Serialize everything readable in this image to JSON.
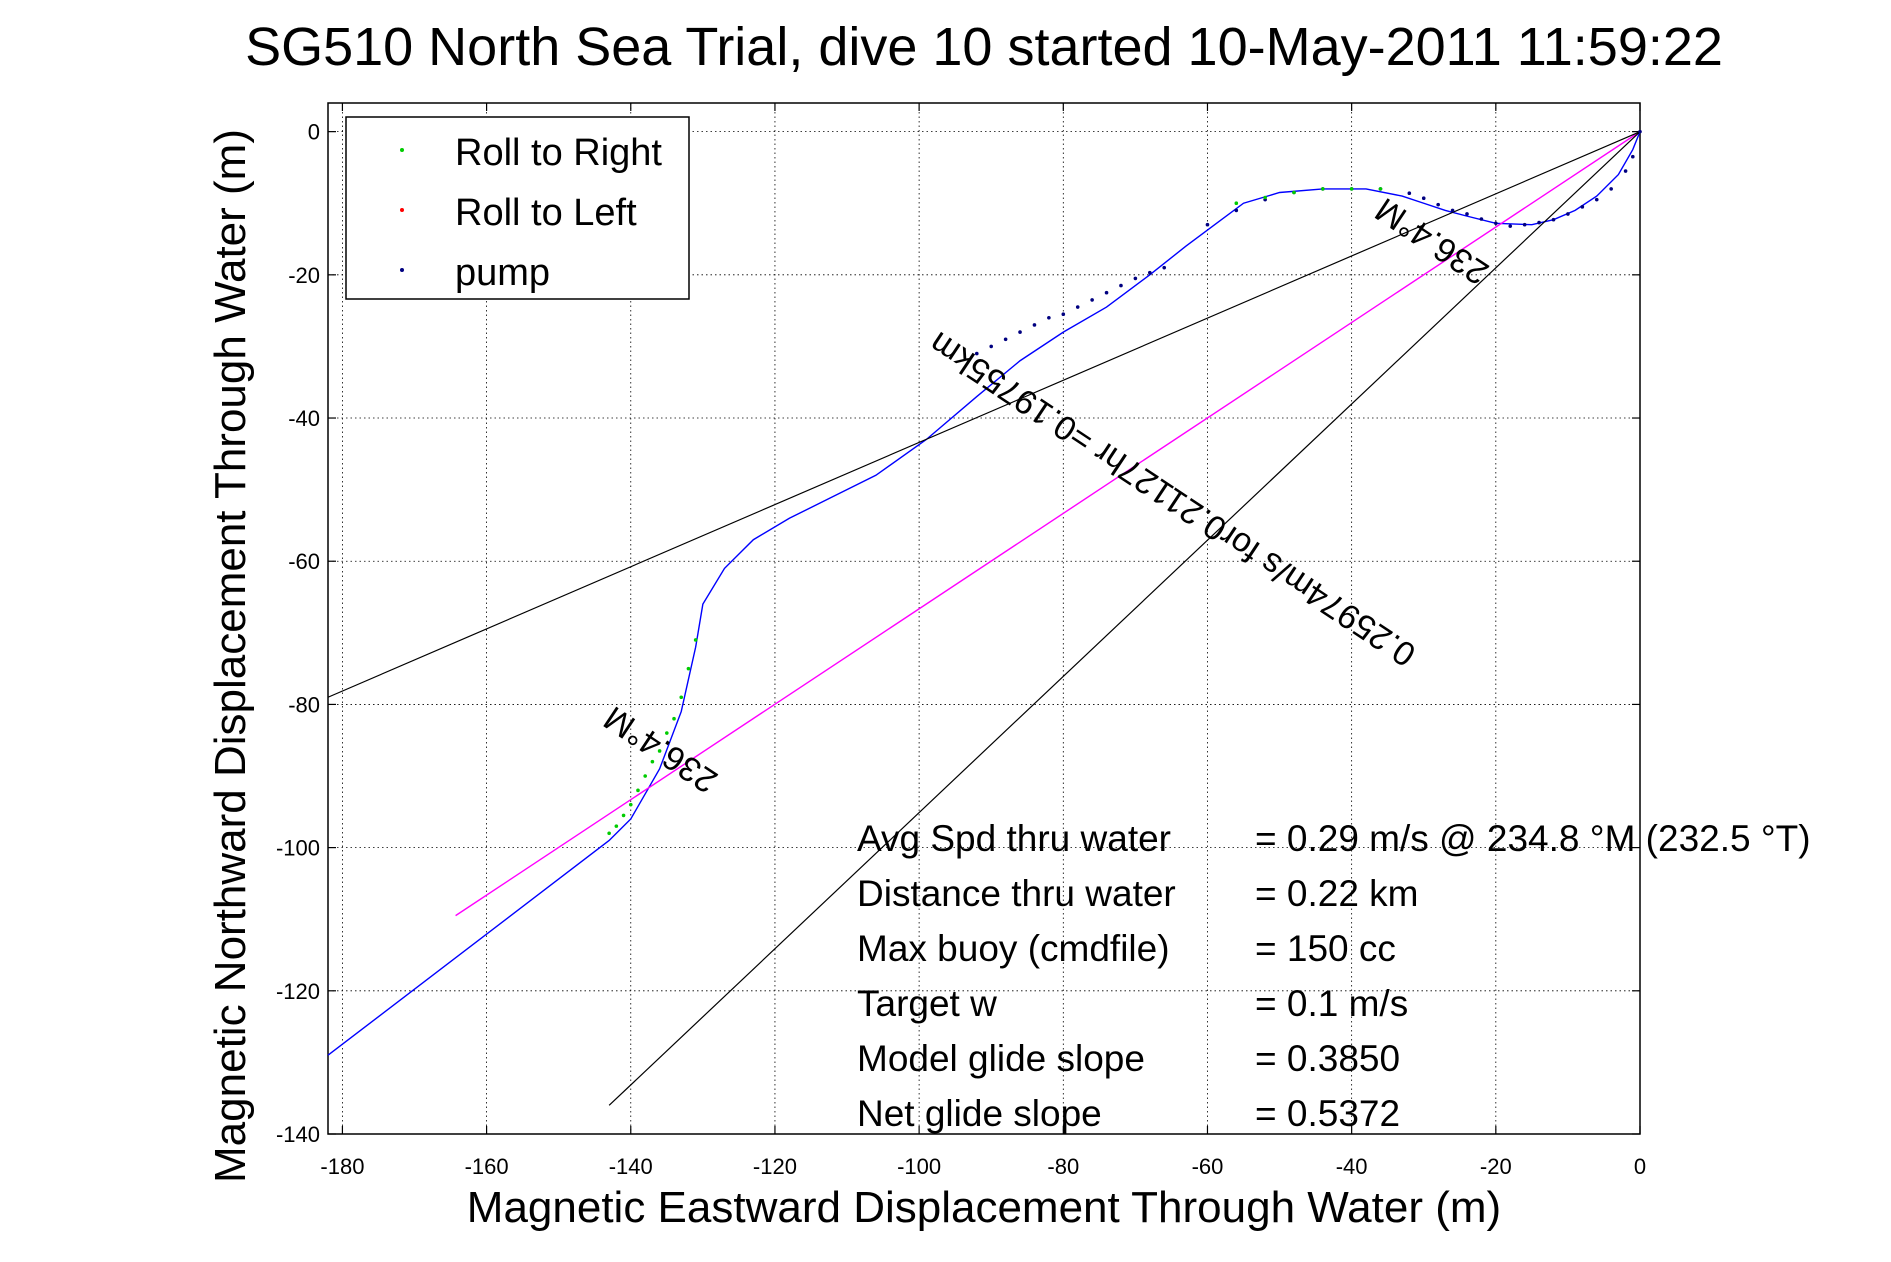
{
  "chart_data": {
    "type": "line",
    "title": "SG510 North Sea Trial, dive 10 started 10-May-2011 11:59:22",
    "xlabel": "Magnetic Eastward Displacement Through Water (m)",
    "ylabel": "Magnetic Northward Displacement Through Water (m)",
    "xlim": [
      -182,
      0
    ],
    "ylim": [
      -140,
      4
    ],
    "xticks": [
      -180,
      -160,
      -140,
      -120,
      -100,
      -80,
      -60,
      -40,
      -20,
      0
    ],
    "yticks": [
      0,
      -20,
      -40,
      -60,
      -80,
      -100,
      -120,
      -140
    ],
    "grid": true,
    "legend": {
      "placement": "top-left",
      "entries": [
        {
          "label": "Roll to Right",
          "color": "#00cc00"
        },
        {
          "label": "Roll to Left",
          "color": "#ff0000"
        },
        {
          "label": "pump",
          "color": "#000080"
        }
      ]
    },
    "series": [
      {
        "role": "track",
        "color": "#0000ff",
        "x": [
          -182,
          -143,
          -140,
          -136,
          -133,
          -131,
          -130,
          -127,
          -123,
          -118,
          -112,
          -106,
          -99,
          -92,
          -86,
          -80,
          -74,
          -68,
          -63,
          -59,
          -55,
          -50,
          -44,
          -38,
          -33,
          -30,
          -27,
          -24,
          -20,
          -15,
          -12,
          -9,
          -6,
          -3,
          -1,
          0
        ],
        "y": [
          -129,
          -99,
          -96,
          -89,
          -81,
          -72,
          -66,
          -61,
          -57,
          -54,
          -51,
          -48,
          -43,
          -37,
          -32,
          -28,
          -24.5,
          -20,
          -16,
          -13,
          -10,
          -8.5,
          -8,
          -8,
          -9,
          -10,
          -11,
          -11.8,
          -12.8,
          -13,
          -12.3,
          -11,
          -9,
          -6,
          -2.5,
          0
        ]
      },
      {
        "role": "pump",
        "color": "#000080",
        "x": [
          -92,
          -90,
          -88,
          -86,
          -84,
          -82,
          -80,
          -78,
          -76,
          -74,
          -72,
          -70,
          -68,
          -66,
          -60,
          -56,
          -52,
          -48,
          -44,
          -40,
          -36,
          -32,
          -30,
          -28,
          -26,
          -24,
          -22,
          -20,
          -18,
          -16,
          -14,
          -12,
          -10,
          -8,
          -6,
          -4,
          -2,
          -1,
          0
        ],
        "y": [
          -31,
          -30,
          -29,
          -28,
          -27,
          -26,
          -25.5,
          -24.5,
          -23.5,
          -22.5,
          -21.5,
          -20.5,
          -19.7,
          -19,
          -13,
          -11,
          -9.5,
          -8.5,
          -8,
          -8,
          -8,
          -8.6,
          -9.3,
          -10.2,
          -11,
          -11.5,
          -12.2,
          -12.8,
          -13.2,
          -13,
          -12.7,
          -12.3,
          -11.5,
          -10.5,
          -9.5,
          -8,
          -5.5,
          -3.5,
          0
        ]
      },
      {
        "role": "roll_right",
        "color": "#00cc00",
        "x": [
          -143,
          -142,
          -141,
          -140,
          -139,
          -138,
          -137,
          -136,
          -135,
          -134,
          -133,
          -132,
          -131,
          -56,
          -52,
          -48,
          -44,
          -40,
          -36
        ],
        "y": [
          -98,
          -97,
          -95.5,
          -94,
          -92,
          -90,
          -88,
          -86.5,
          -84,
          -82,
          -79,
          -75,
          -71,
          -10,
          -9.2,
          -8.5,
          -8,
          -8,
          -8
        ]
      },
      {
        "role": "course",
        "color": "#ff00ff",
        "x": [
          -164.3,
          0
        ],
        "y": [
          -109.5,
          0
        ]
      },
      {
        "role": "course-arrow",
        "color": "#000000",
        "x": [
          -182,
          0
        ],
        "y": [
          -79,
          0
        ]
      },
      {
        "role": "course-arrow",
        "color": "#000000",
        "x": [
          -143,
          0
        ],
        "y": [
          -136,
          0
        ]
      }
    ],
    "annotations": [
      {
        "text": "236.4°M",
        "x": -135,
        "y": -85,
        "rotate": 213.6
      },
      {
        "text": "236.4°M",
        "x": -28,
        "y": -14,
        "rotate": 213.6
      },
      {
        "text": "0.25974m/s for0.21127hr =0.19755km",
        "x": -64,
        "y": -50,
        "rotate": 213.6
      }
    ]
  },
  "stats": {
    "rows": [
      {
        "label": "Avg Spd thru water",
        "value": "=  0.29 m/s @ 234.8 °M (232.5 °T)"
      },
      {
        "label": "Distance thru water",
        "value": "=  0.22 km"
      },
      {
        "label": "Max buoy (cmdfile)",
        "value": "= 150 cc"
      },
      {
        "label": "Target w",
        "value": "= 0.1 m/s"
      },
      {
        "label": "Model glide slope",
        "value": "= 0.3850"
      },
      {
        "label": "Net glide slope",
        "value": "= 0.5372"
      }
    ]
  }
}
